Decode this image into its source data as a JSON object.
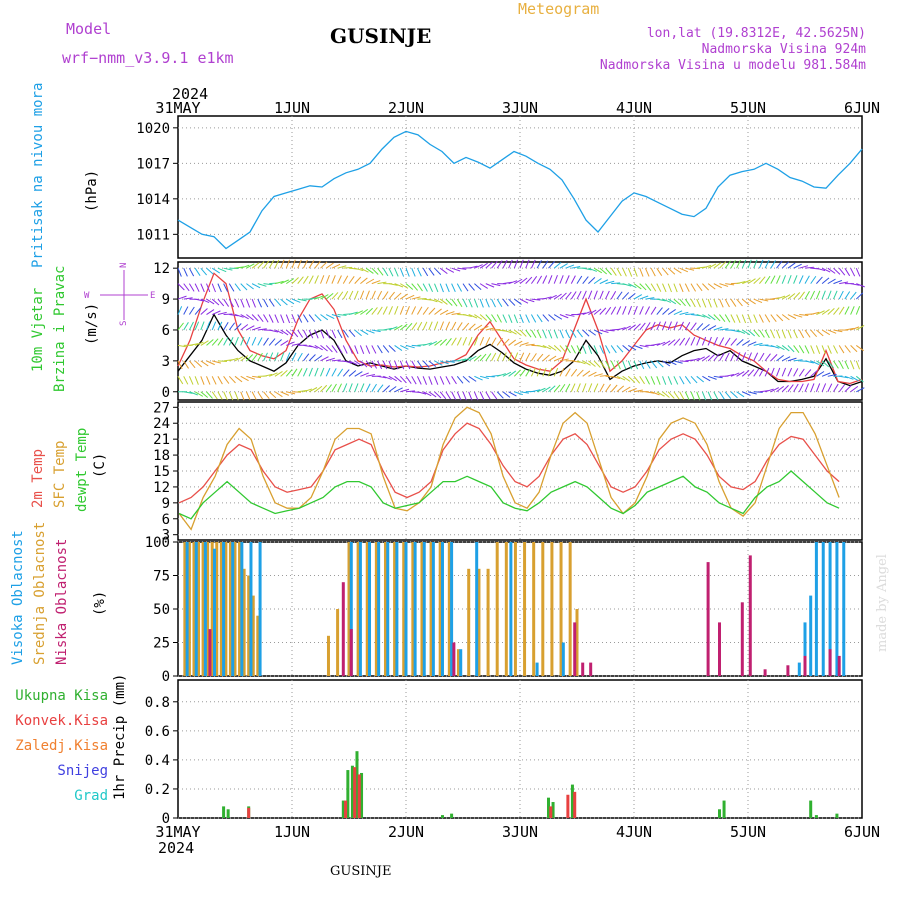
{
  "header": {
    "model_label": "Model",
    "model_name": "wrf−nmm_v3.9.1 e1km",
    "title": "GUSINJE",
    "meteogram": "Meteogram",
    "lonlat": "lon,lat (19.8312E, 42.5625N)",
    "elevation": "Nadmorska Visina 924m",
    "model_elevation": "Nadmorska Visina u modelu 981.584m",
    "footer_title": "GUSINJE",
    "watermark": "made by Angel"
  },
  "colors": {
    "pressure": "#1ea0e6",
    "wind_speed": "#000000",
    "wind_gust": "#e84040",
    "temp2m": "#e8504a",
    "sfc_temp": "#d8a030",
    "dewpoint": "#30c830",
    "cloud_high": "#1ea0e6",
    "cloud_mid": "#d8a030",
    "cloud_low": "#c02070",
    "precip_total": "#30b030",
    "precip_conv": "#e84040",
    "precip_frozen": "#f08030",
    "precip_snow": "#4040e0",
    "precip_grad": "#20c8c8",
    "title_text": "#000000",
    "purple_text": "#b040d0",
    "gold_text": "#e8b040"
  },
  "chart_data": [
    {
      "id": "pressure",
      "type": "line",
      "ylabel": [
        "Pritisak na nivou mora",
        "(hPa)"
      ],
      "ylim": [
        1009,
        1021
      ],
      "yticks": [
        1011,
        1014,
        1017,
        1020
      ],
      "top_labels": [
        "31MAY",
        "1JUN",
        "2JUN",
        "3JUN",
        "4JUN",
        "5JUN",
        "6JUN"
      ],
      "top_year": "2024",
      "series": [
        {
          "color_key": "pressure",
          "values": [
            1012.2,
            1011.6,
            1011.0,
            1010.8,
            1009.8,
            1010.5,
            1011.2,
            1013.0,
            1014.2,
            1014.5,
            1014.8,
            1015.1,
            1015.0,
            1015.7,
            1016.2,
            1016.5,
            1017.0,
            1018.2,
            1019.2,
            1019.7,
            1019.4,
            1018.6,
            1018.0,
            1017.0,
            1017.5,
            1017.1,
            1016.6,
            1017.3,
            1018.0,
            1017.6,
            1017.0,
            1016.5,
            1015.6,
            1014.0,
            1012.2,
            1011.2,
            1012.5,
            1013.8,
            1014.5,
            1014.2,
            1013.7,
            1013.2,
            1012.7,
            1012.5,
            1013.2,
            1015.0,
            1016.0,
            1016.3,
            1016.5,
            1017.0,
            1016.5,
            1015.8,
            1015.5,
            1015.0,
            1014.9,
            1016.0,
            1017.0,
            1018.2
          ]
        }
      ],
      "x_start": 0,
      "x_step": 0.10526
    },
    {
      "id": "wind",
      "type": "line",
      "ylabel": [
        "10m Vjetar",
        "Brzina i Pravac",
        "(m/s)"
      ],
      "ylim": [
        -0.8,
        12.6
      ],
      "yticks": [
        0,
        3,
        6,
        9,
        12
      ],
      "compass": [
        "N",
        "W",
        "E",
        "S"
      ],
      "series": [
        {
          "name_key": "wind_speed",
          "color_key": "wind_speed",
          "values": [
            2.0,
            3.5,
            5.0,
            7.5,
            5.5,
            4.0,
            3.0,
            2.5,
            2.0,
            2.8,
            4.5,
            5.5,
            6.0,
            5.0,
            3.0,
            2.5,
            2.8,
            2.5,
            2.2,
            2.5,
            2.3,
            2.2,
            2.4,
            2.6,
            3.0,
            4.0,
            4.6,
            3.8,
            2.8,
            2.2,
            1.8,
            1.6,
            2.0,
            3.0,
            5.0,
            3.5,
            1.2,
            2.0,
            2.5,
            2.8,
            3.0,
            2.8,
            3.5,
            4.0,
            4.2,
            3.5,
            4.0,
            3.0,
            2.5,
            2.0,
            1.0,
            1.0,
            1.2,
            1.5,
            3.2,
            1.0,
            0.6,
            1.0
          ]
        },
        {
          "name_key": "wind_gust",
          "color_key": "wind_gust",
          "values": [
            2.5,
            5.0,
            8.5,
            11.5,
            10.5,
            6.0,
            4.0,
            3.5,
            3.2,
            4.0,
            7.0,
            9.0,
            9.5,
            8.0,
            5.0,
            3.0,
            2.5,
            2.6,
            2.4,
            2.5,
            2.4,
            2.5,
            2.8,
            3.0,
            3.6,
            5.5,
            6.8,
            5.0,
            3.2,
            2.6,
            2.2,
            2.0,
            3.0,
            6.0,
            9.0,
            6.0,
            2.0,
            3.0,
            4.5,
            6.0,
            6.5,
            6.2,
            6.5,
            5.5,
            5.0,
            4.5,
            4.2,
            3.5,
            3.0,
            2.0,
            1.2,
            1.0,
            1.0,
            1.2,
            4.0,
            1.0,
            0.8,
            1.2
          ]
        }
      ],
      "x_start": 0,
      "x_step": 0.10526
    },
    {
      "id": "temperature",
      "type": "line",
      "ylabel": [
        "2m Temp",
        "SFC Temp",
        "dewpt Temp",
        "(C)"
      ],
      "ylim": [
        2,
        28
      ],
      "yticks": [
        3,
        6,
        9,
        12,
        15,
        18,
        21,
        24,
        27
      ],
      "series": [
        {
          "name_key": "temp2m",
          "color_key": "temp2m",
          "values": [
            9,
            10,
            12,
            15,
            18,
            20,
            19,
            15,
            12,
            11,
            11.5,
            12,
            15,
            19,
            20,
            21,
            20,
            15,
            11,
            10,
            11,
            13,
            19,
            22,
            24,
            23,
            20,
            16,
            13,
            12,
            14,
            18,
            21,
            22,
            20,
            16,
            12,
            11,
            12,
            15,
            19,
            21,
            22,
            21,
            18,
            14,
            12,
            11.5,
            13,
            17,
            20,
            21.5,
            21,
            18,
            15,
            13
          ]
        },
        {
          "name_key": "sfc_temp",
          "color_key": "sfc_temp",
          "values": [
            7,
            4,
            10,
            14,
            20,
            23,
            21,
            14,
            9,
            8,
            8,
            10,
            15,
            21,
            23,
            23,
            22,
            14,
            8,
            7.5,
            9,
            12,
            20,
            25,
            27,
            26,
            22,
            14,
            9,
            8,
            11,
            18,
            24,
            26,
            24,
            17,
            10,
            7,
            9,
            14,
            21,
            24,
            25,
            24,
            20,
            13,
            8,
            6.5,
            9,
            16,
            23,
            26,
            26,
            22,
            16,
            10
          ]
        },
        {
          "name_key": "dewpoint",
          "color_key": "dewpoint",
          "values": [
            7,
            6,
            9,
            11,
            13,
            11,
            9,
            8,
            7,
            7.5,
            8,
            9,
            10,
            12,
            13,
            13,
            12,
            9,
            8,
            8.5,
            9,
            11,
            13,
            13,
            14,
            13,
            12,
            9,
            8,
            7.5,
            9,
            11,
            12,
            13,
            12,
            10,
            8,
            7,
            8.5,
            11,
            12,
            13,
            14,
            12,
            11,
            9,
            8,
            7,
            10,
            12,
            13,
            15,
            13,
            11,
            9,
            8
          ]
        }
      ],
      "x_start": 0.01,
      "x_step": 0.10526
    },
    {
      "id": "clouds",
      "type": "bar",
      "ylabel": [
        "Visoka Oblacnost",
        "Srednja Oblacnost",
        "Niska Oblacnost",
        "(%)"
      ],
      "ylim": [
        0,
        100
      ],
      "yticks": [
        0,
        25,
        50,
        75,
        100
      ],
      "series": [
        {
          "name_key": "cloud_mid",
          "color_key": "cloud_mid",
          "values": [
            [
              0.06,
              100
            ],
            [
              0.1,
              100
            ],
            [
              0.14,
              100
            ],
            [
              0.18,
              100
            ],
            [
              0.22,
              100
            ],
            [
              0.26,
              100
            ],
            [
              0.3,
              100
            ],
            [
              0.34,
              100
            ],
            [
              0.38,
              100
            ],
            [
              0.42,
              100
            ],
            [
              0.46,
              100
            ],
            [
              0.5,
              100
            ],
            [
              0.54,
              100
            ],
            [
              0.58,
              80
            ],
            [
              0.62,
              75
            ],
            [
              0.66,
              60
            ],
            [
              0.7,
              45
            ],
            [
              1.32,
              30
            ],
            [
              1.4,
              50
            ],
            [
              1.5,
              100
            ],
            [
              1.58,
              100
            ],
            [
              1.66,
              100
            ],
            [
              1.74,
              100
            ],
            [
              1.82,
              100
            ],
            [
              1.9,
              100
            ],
            [
              1.98,
              100
            ],
            [
              2.06,
              100
            ],
            [
              2.14,
              100
            ],
            [
              2.22,
              100
            ],
            [
              2.3,
              100
            ],
            [
              2.38,
              100
            ],
            [
              2.46,
              20
            ],
            [
              2.55,
              80
            ],
            [
              2.64,
              80
            ],
            [
              2.72,
              80
            ],
            [
              2.8,
              100
            ],
            [
              2.88,
              100
            ],
            [
              2.96,
              100
            ],
            [
              3.04,
              100
            ],
            [
              3.12,
              100
            ],
            [
              3.2,
              100
            ],
            [
              3.28,
              100
            ],
            [
              3.36,
              100
            ],
            [
              3.44,
              100
            ],
            [
              3.5,
              50
            ]
          ]
        },
        {
          "name_key": "cloud_high",
          "color_key": "cloud_high",
          "values": [
            [
              0.08,
              100
            ],
            [
              0.16,
              100
            ],
            [
              0.24,
              100
            ],
            [
              0.32,
              95
            ],
            [
              0.4,
              100
            ],
            [
              0.48,
              100
            ],
            [
              0.56,
              100
            ],
            [
              0.64,
              100
            ],
            [
              0.72,
              100
            ],
            [
              1.52,
              100
            ],
            [
              1.6,
              100
            ],
            [
              1.68,
              100
            ],
            [
              1.76,
              100
            ],
            [
              1.84,
              100
            ],
            [
              1.92,
              100
            ],
            [
              2.0,
              100
            ],
            [
              2.08,
              100
            ],
            [
              2.16,
              100
            ],
            [
              2.24,
              100
            ],
            [
              2.32,
              100
            ],
            [
              2.4,
              100
            ],
            [
              2.48,
              20
            ],
            [
              2.62,
              100
            ],
            [
              2.92,
              100
            ],
            [
              3.06,
              0
            ],
            [
              3.15,
              10
            ],
            [
              3.38,
              25
            ],
            [
              5.45,
              10
            ],
            [
              5.5,
              40
            ],
            [
              5.55,
              60
            ],
            [
              5.6,
              100
            ],
            [
              5.66,
              100
            ],
            [
              5.72,
              100
            ],
            [
              5.78,
              100
            ],
            [
              5.84,
              100
            ]
          ]
        },
        {
          "name_key": "cloud_low",
          "color_key": "cloud_low",
          "values": [
            [
              0.28,
              35
            ],
            [
              1.45,
              70
            ],
            [
              1.52,
              35
            ],
            [
              2.42,
              25
            ],
            [
              3.48,
              40
            ],
            [
              3.55,
              10
            ],
            [
              3.62,
              10
            ],
            [
              4.65,
              85
            ],
            [
              4.75,
              40
            ],
            [
              4.95,
              55
            ],
            [
              5.02,
              90
            ],
            [
              5.15,
              5
            ],
            [
              5.35,
              8
            ],
            [
              5.5,
              15
            ],
            [
              5.72,
              20
            ],
            [
              5.8,
              15
            ]
          ]
        }
      ]
    },
    {
      "id": "precip",
      "type": "bar",
      "ylabel": [
        "1hr Precip (mm)"
      ],
      "legend": [
        {
          "label": "Ukupna Kisa",
          "color_key": "precip_total"
        },
        {
          "label": "Konvek.Kisa",
          "color_key": "precip_conv"
        },
        {
          "label": "Zaledj.Kisa",
          "color_key": "precip_frozen"
        },
        {
          "label": "Snijeg",
          "color_key": "precip_snow"
        },
        {
          "label": "Grad",
          "color_key": "precip_grad"
        }
      ],
      "ylim": [
        0,
        0.95
      ],
      "yticks": [
        0,
        0.2,
        0.4,
        0.6,
        0.8
      ],
      "bottom_labels": [
        "31MAY",
        "1JUN",
        "2JUN",
        "3JUN",
        "4JUN",
        "5JUN",
        "6JUN"
      ],
      "bottom_year": "2024",
      "series": [
        {
          "name_key": "precip_total",
          "color_key": "precip_total",
          "values": [
            [
              0.4,
              0.08
            ],
            [
              0.44,
              0.06
            ],
            [
              0.62,
              0.08
            ],
            [
              1.45,
              0.12
            ],
            [
              1.49,
              0.33
            ],
            [
              1.53,
              0.36
            ],
            [
              1.57,
              0.46
            ],
            [
              1.61,
              0.31
            ],
            [
              2.32,
              0.02
            ],
            [
              2.4,
              0.03
            ],
            [
              3.25,
              0.14
            ],
            [
              3.29,
              0.11
            ],
            [
              3.46,
              0.23
            ],
            [
              4.75,
              0.06
            ],
            [
              4.79,
              0.12
            ],
            [
              5.55,
              0.12
            ],
            [
              5.6,
              0.02
            ],
            [
              5.78,
              0.03
            ]
          ]
        },
        {
          "name_key": "precip_conv",
          "color_key": "precip_conv",
          "values": [
            [
              0.62,
              0.07
            ],
            [
              1.47,
              0.12
            ],
            [
              1.55,
              0.35
            ],
            [
              1.59,
              0.3
            ],
            [
              3.27,
              0.08
            ],
            [
              3.42,
              0.16
            ],
            [
              3.48,
              0.18
            ]
          ]
        }
      ]
    }
  ]
}
